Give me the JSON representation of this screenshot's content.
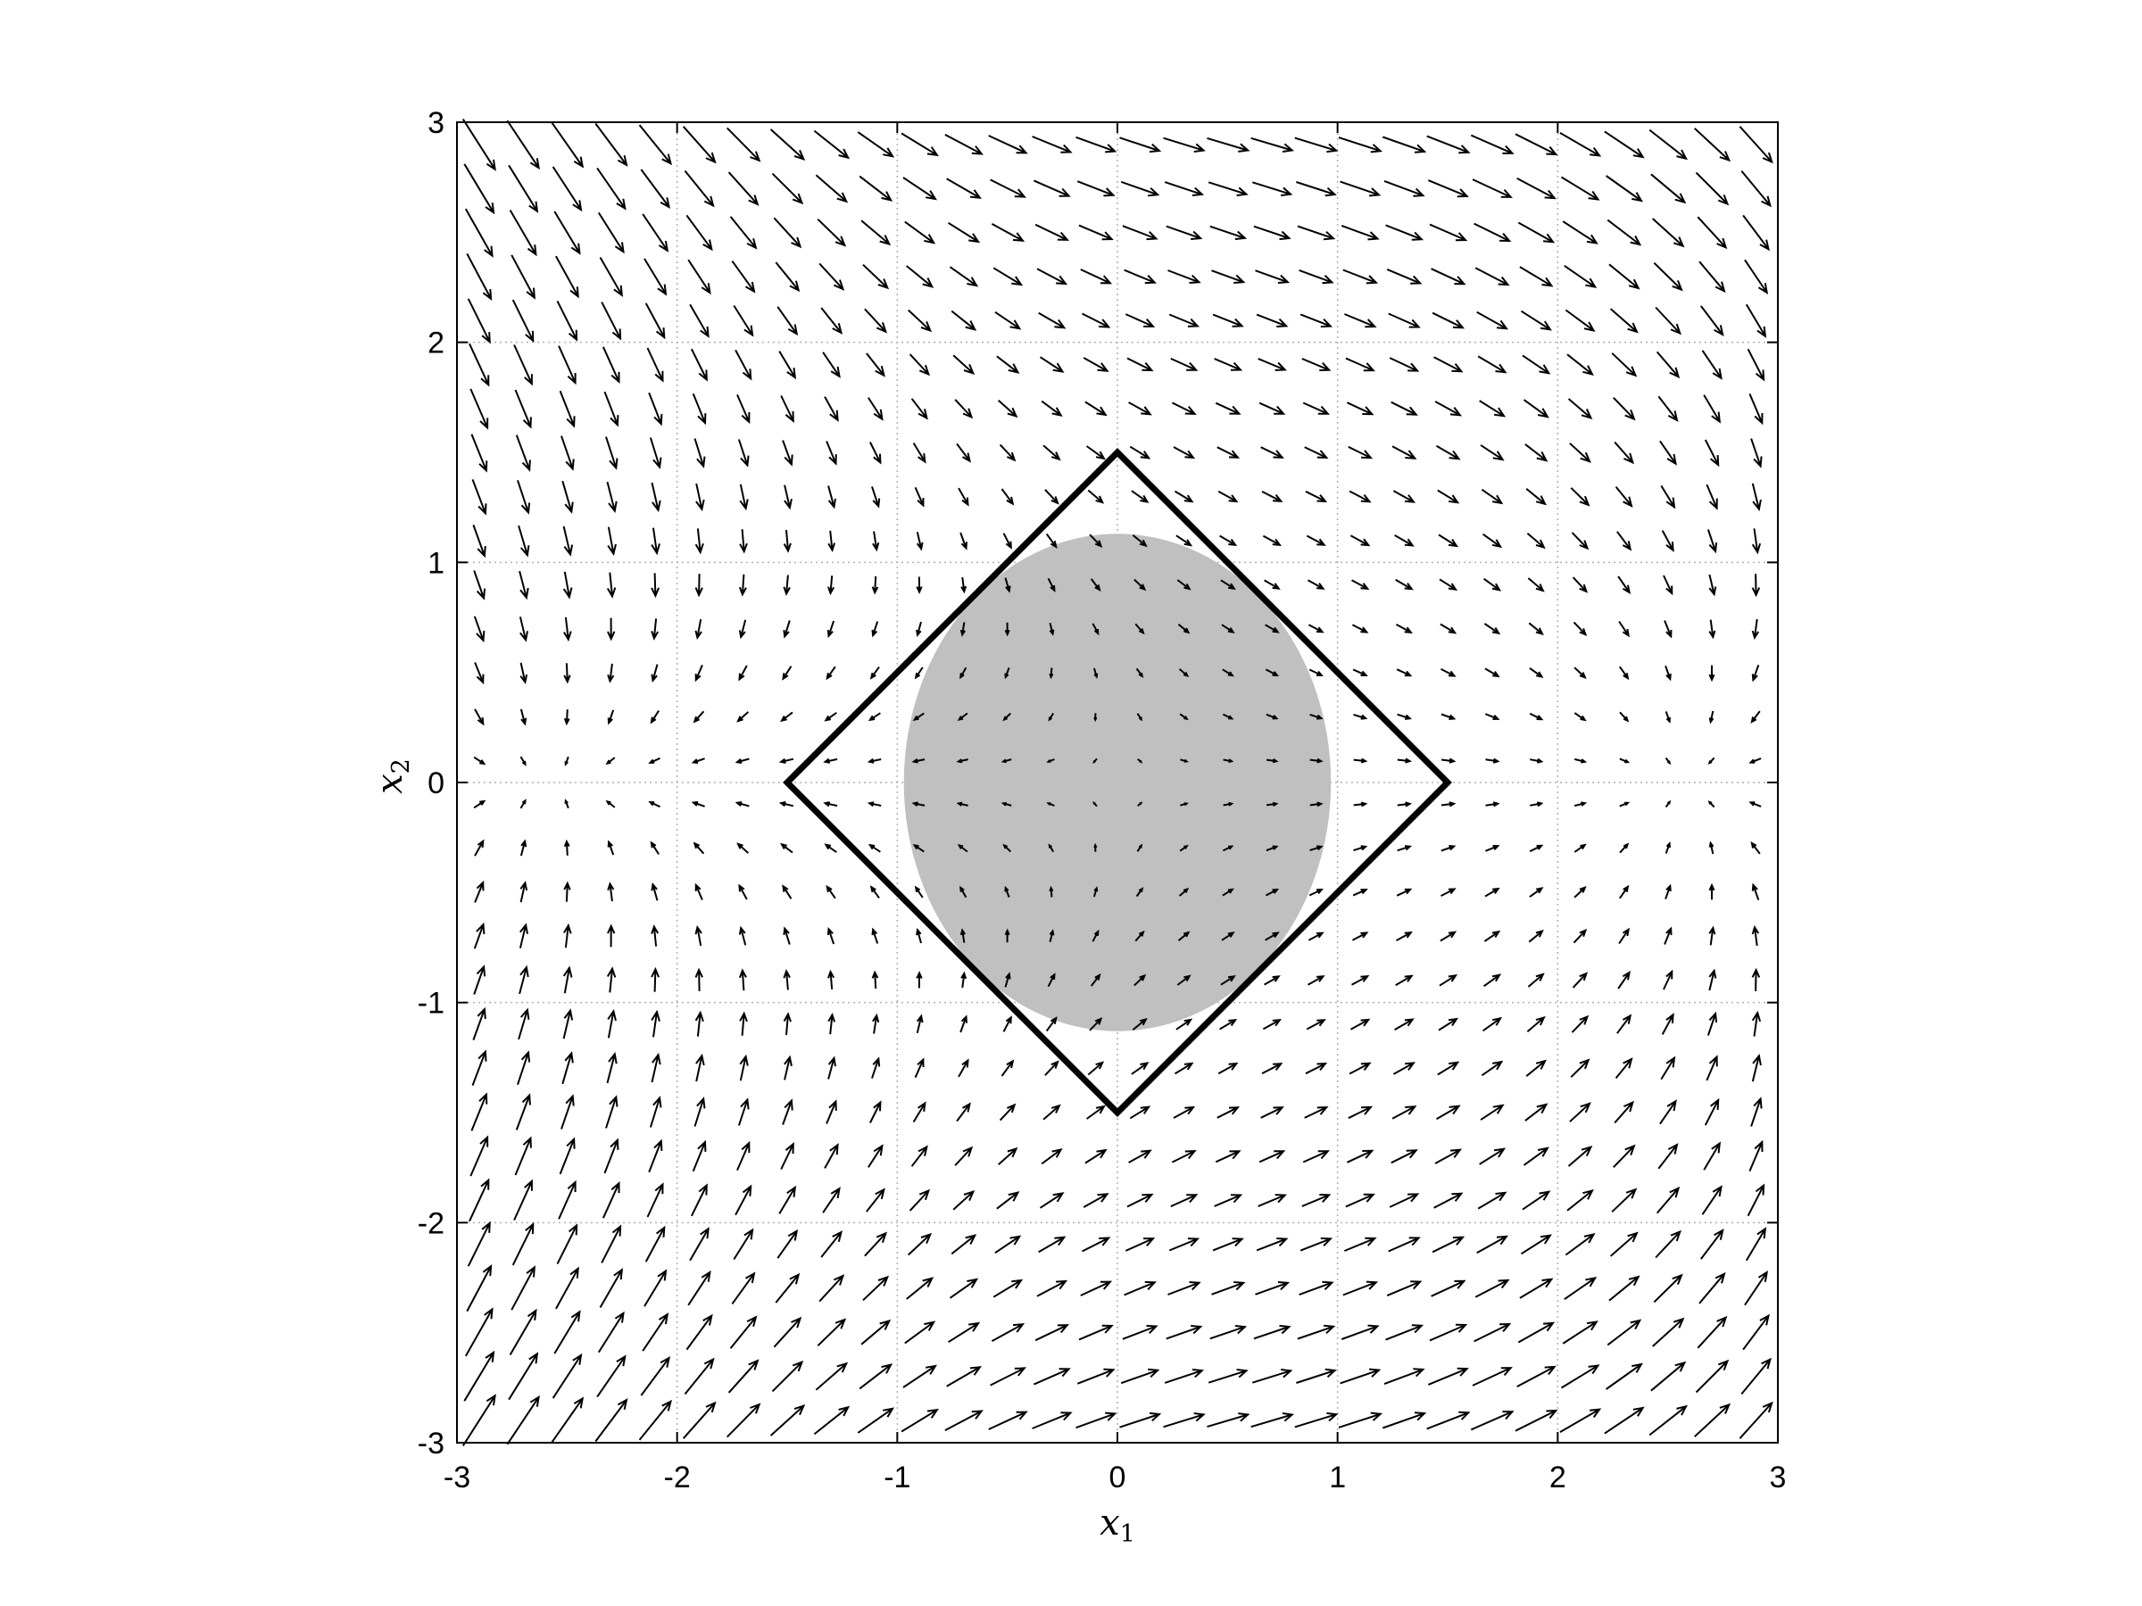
{
  "chart_data": {
    "type": "quiver",
    "title": "",
    "xlabel": "x",
    "xlabel_sub": "1",
    "ylabel": "x",
    "ylabel_sub": "2",
    "xlim": [
      -3,
      3
    ],
    "ylim": [
      -3,
      3
    ],
    "xticks": [
      "-3",
      "-2",
      "-1",
      "0",
      "1",
      "2",
      "3"
    ],
    "yticks": [
      "-3",
      "-2",
      "-1",
      "0",
      "1",
      "2",
      "3"
    ],
    "grid": true,
    "grid_style": "dotted",
    "vector_field": {
      "description_of_grid": "30 x 30 sample points from -3 to 3",
      "x_range": [
        -2.9,
        2.9
      ],
      "y_range": [
        -2.9,
        2.9
      ],
      "samples_per_axis": 30,
      "color": "#000000"
    },
    "diamond": {
      "vertices": [
        [
          0,
          1.5
        ],
        [
          1.5,
          0
        ],
        [
          0,
          -1.5
        ],
        [
          -1.5,
          0
        ]
      ],
      "color": "#000000"
    },
    "shaded_region": {
      "shape": "ellipse",
      "center": [
        0,
        0
      ],
      "semi_axis_x": 0.97,
      "semi_axis_y": 1.13,
      "color": "#c0c0c0"
    }
  }
}
